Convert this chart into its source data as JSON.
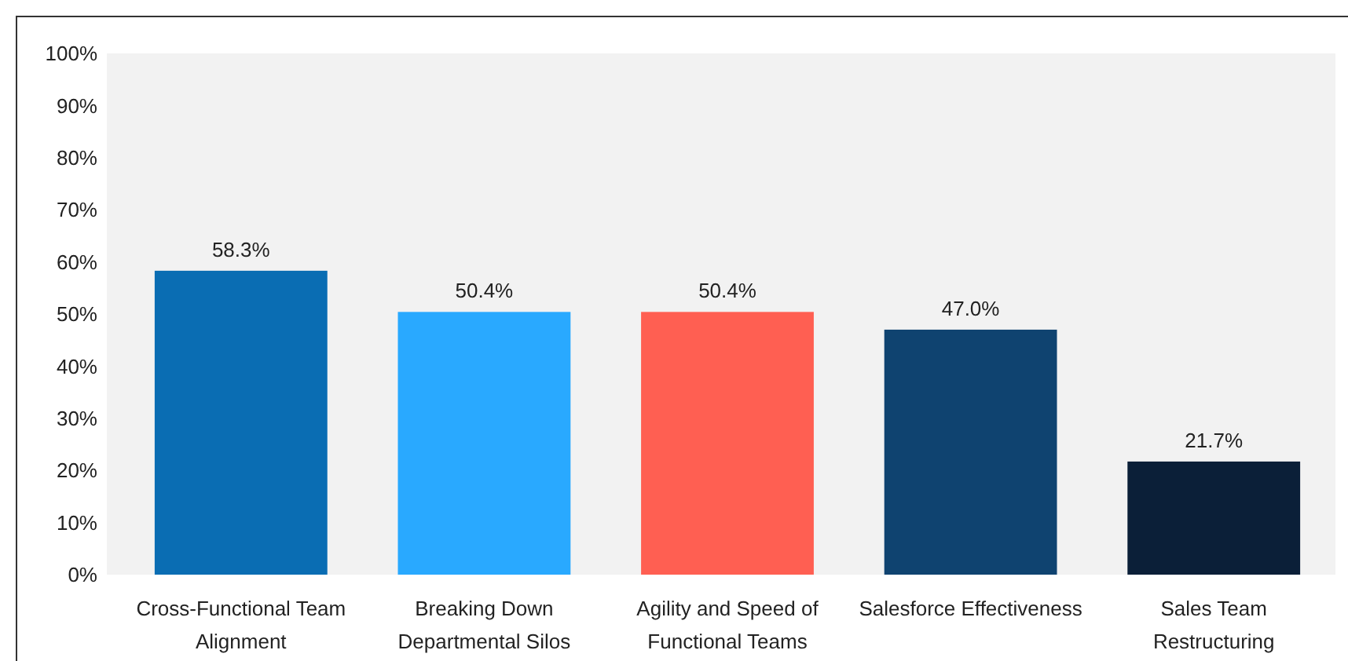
{
  "chart_data": {
    "type": "bar",
    "categories": [
      "Cross-Functional Team\nAlignment",
      "Breaking Down\nDepartmental Silos",
      "Agility and Speed of\nFunctional Teams",
      "Salesforce Effectiveness",
      "Sales Team\nRestructuring"
    ],
    "values": [
      58.3,
      50.4,
      50.4,
      47.0,
      21.7
    ],
    "colors": [
      "#0a6db3",
      "#29a9ff",
      "#ff5f52",
      "#0f4370",
      "#0b1f38"
    ],
    "value_labels": [
      "58.3%",
      "50.4%",
      "50.4%",
      "47.0%",
      "21.7%"
    ],
    "ylim": [
      0,
      100
    ],
    "yticks": [
      {
        "value": 0,
        "label": "0%"
      },
      {
        "value": 10,
        "label": "10%"
      },
      {
        "value": 20,
        "label": "20%"
      },
      {
        "value": 30,
        "label": "30%"
      },
      {
        "value": 40,
        "label": "40%"
      },
      {
        "value": 50,
        "label": "50%"
      },
      {
        "value": 60,
        "label": "60%"
      },
      {
        "value": 70,
        "label": "70%"
      },
      {
        "value": 80,
        "label": "80%"
      },
      {
        "value": 90,
        "label": "90%"
      },
      {
        "value": 100,
        "label": "100%"
      }
    ],
    "grid": false
  }
}
